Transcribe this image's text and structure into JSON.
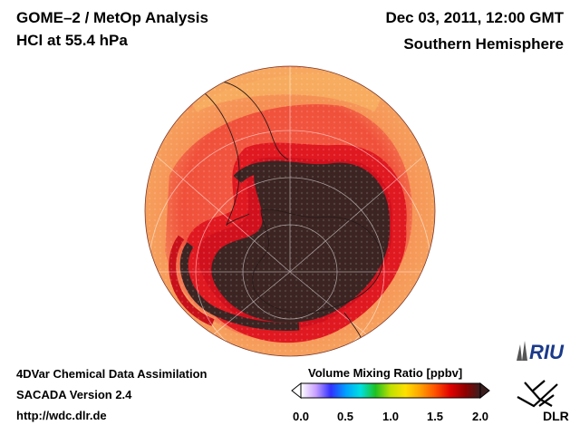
{
  "header": {
    "instrument": "GOME–2 / MetOp Analysis",
    "species": "HCl at 55.4 hPa",
    "datetime": "Dec 03, 2011, 12:00 GMT",
    "region": "Southern Hemisphere"
  },
  "footer": {
    "system": "4DVar Chemical Data Assimilation",
    "version": "SACADA Version 2.4",
    "url": "http://wdc.dlr.de"
  },
  "colorbar": {
    "title": "Volume Mixing Ratio [ppbv]",
    "range": [
      0.0,
      2.0
    ],
    "ticks": [
      "0.0",
      "0.5",
      "1.0",
      "1.5",
      "2.0"
    ],
    "colors": [
      "#ffffff",
      "#c8a0ff",
      "#3030ff",
      "#00a0ff",
      "#00e0e0",
      "#20c020",
      "#c0e000",
      "#ffe000",
      "#ffa000",
      "#ff5000",
      "#e00000",
      "#900000",
      "#3a1e1e"
    ]
  },
  "logos": {
    "riu": "RIU",
    "dlr": "DLR"
  },
  "colors": {
    "hcl_low": "#3b2422",
    "hcl_mid": "#e0101a",
    "hcl_high": "#f58a3c"
  }
}
